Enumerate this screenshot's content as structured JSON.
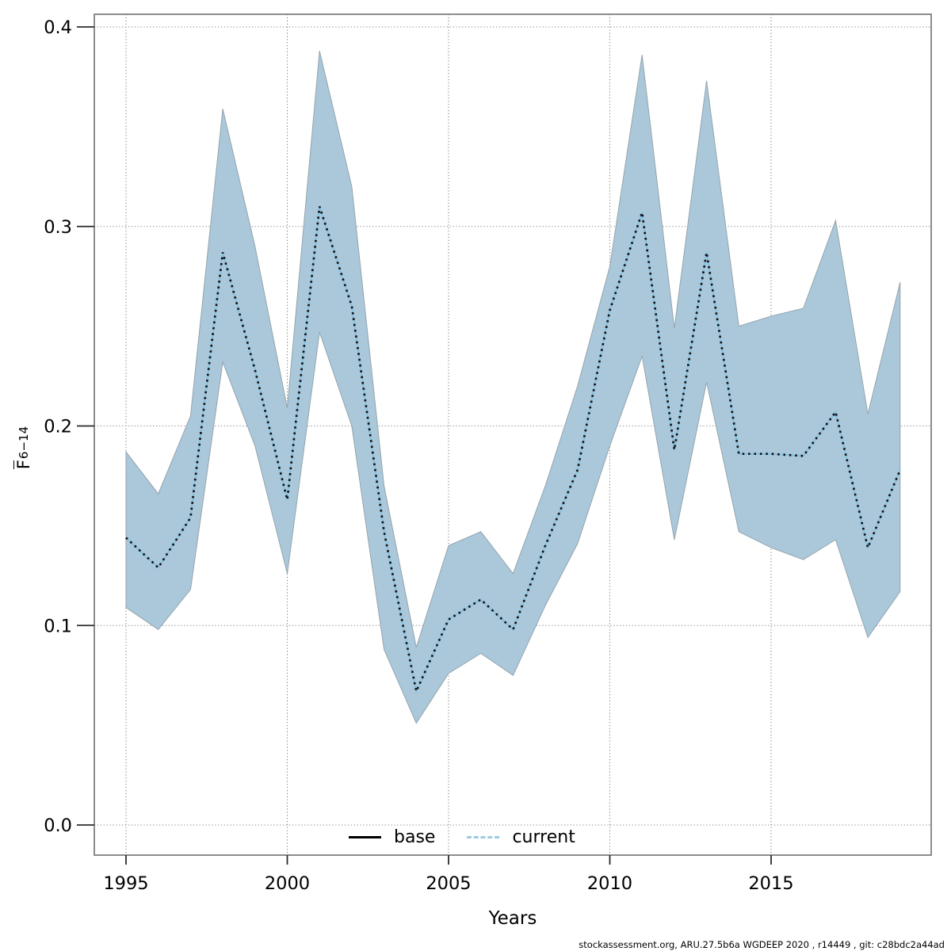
{
  "chart_data": {
    "type": "line",
    "title": "",
    "xlabel": "Years",
    "ylabel_symbol": "F",
    "ylabel_subscript": "6−14",
    "x": [
      1995,
      1996,
      1997,
      1998,
      1999,
      2000,
      2001,
      2002,
      2003,
      2004,
      2005,
      2006,
      2007,
      2008,
      2009,
      2010,
      2011,
      2012,
      2013,
      2014,
      2015,
      2016,
      2017,
      2018,
      2019
    ],
    "series": [
      {
        "name": "current",
        "style": "dotted",
        "values": [
          0.144,
          0.129,
          0.154,
          0.287,
          0.228,
          0.163,
          0.31,
          0.26,
          0.147,
          0.067,
          0.103,
          0.113,
          0.098,
          0.14,
          0.178,
          0.258,
          0.307,
          0.188,
          0.287,
          0.186,
          0.186,
          0.185,
          0.207,
          0.139,
          0.178
        ],
        "ci_lower": [
          0.109,
          0.098,
          0.118,
          0.232,
          0.19,
          0.126,
          0.247,
          0.2,
          0.088,
          0.051,
          0.076,
          0.086,
          0.075,
          0.11,
          0.141,
          0.19,
          0.235,
          0.143,
          0.222,
          0.147,
          0.139,
          0.133,
          0.143,
          0.094,
          0.117
        ],
        "ci_upper": [
          0.187,
          0.166,
          0.205,
          0.359,
          0.29,
          0.209,
          0.388,
          0.32,
          0.17,
          0.089,
          0.14,
          0.147,
          0.126,
          0.17,
          0.22,
          0.28,
          0.386,
          0.249,
          0.373,
          0.25,
          0.255,
          0.259,
          0.303,
          0.206,
          0.272
        ]
      },
      {
        "name": "base",
        "style": "solid",
        "values": "coincides with current"
      }
    ],
    "x_ticks": [
      "1995",
      "2000",
      "2005",
      "2010",
      "2015"
    ],
    "x_tick_years": [
      1995,
      2000,
      2005,
      2010,
      2015
    ],
    "y_ticks": [
      "0.0",
      "0.1",
      "0.2",
      "0.3",
      "0.4"
    ],
    "y_tick_values": [
      0.0,
      0.1,
      0.2,
      0.3,
      0.4
    ],
    "xlim": [
      1994.05,
      2019.95
    ],
    "ylim": [
      -0.015,
      0.406
    ],
    "grid": "dotted both axes",
    "legend_position": "bottom-center-inside",
    "colors": {
      "band_fill": "#aac8da",
      "band_edge": "#95a4ad",
      "current_line_under": "#85c1e0",
      "current_line_dots": "#121217",
      "base_line": "#000000",
      "legend_current_swatch": "#9fcae0",
      "grid": "#8a8a8a",
      "box": "#7f7f7f",
      "tick": "#2b2b2b",
      "text": "#000000"
    }
  },
  "legend": {
    "base_label": "base",
    "current_label": "current"
  },
  "labels": {
    "x_axis": "Years",
    "y_axis_symbol": "F",
    "y_axis_subscript": "6−14"
  },
  "caption": "stockassessment.org, ARU.27.5b6a  WGDEEP  2020 , r14449 , git: c28bdc2a44ad"
}
